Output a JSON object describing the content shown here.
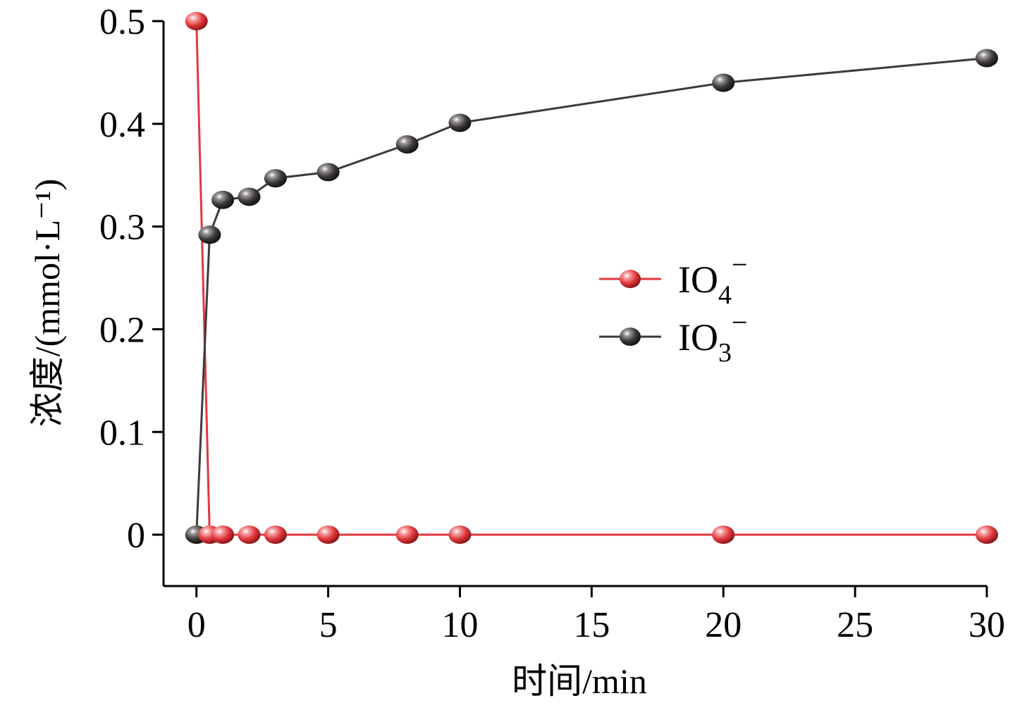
{
  "chart_data": {
    "type": "line",
    "xlabel": "时间/min",
    "ylabel": "浓度/(mmol·L⁻¹)",
    "xlim": [
      -1.25,
      30
    ],
    "ylim": [
      -0.05,
      0.5
    ],
    "x_ticks": [
      0,
      5,
      10,
      15,
      20,
      25,
      30
    ],
    "x_tick_labels": [
      "0",
      "5",
      "10",
      "15",
      "20",
      "25",
      "30"
    ],
    "y_ticks": [
      0,
      0.1,
      0.2,
      0.3,
      0.4,
      0.5
    ],
    "y_tick_labels": [
      "0",
      "0.1",
      "0.2",
      "0.3",
      "0.4",
      "0.5"
    ],
    "grid": false,
    "legend_position": "center-right",
    "series": [
      {
        "name": "IO4−",
        "name_main": "IO",
        "name_sub": "4",
        "name_sup": "−",
        "color": "#e0393e",
        "x": [
          0,
          0.5,
          1,
          2,
          3,
          5,
          8,
          10,
          20,
          30
        ],
        "values": [
          0.5,
          0,
          0,
          0,
          0,
          0,
          0,
          0,
          0,
          0
        ]
      },
      {
        "name": "IO3−",
        "name_main": "IO",
        "name_sub": "3",
        "name_sup": "−",
        "color": "#3d3a3a",
        "x": [
          0,
          0.5,
          1,
          2,
          3,
          5,
          8,
          10,
          20,
          30
        ],
        "values": [
          0,
          0.292,
          0.326,
          0.329,
          0.347,
          0.353,
          0.38,
          0.401,
          0.44,
          0.464
        ]
      }
    ]
  }
}
